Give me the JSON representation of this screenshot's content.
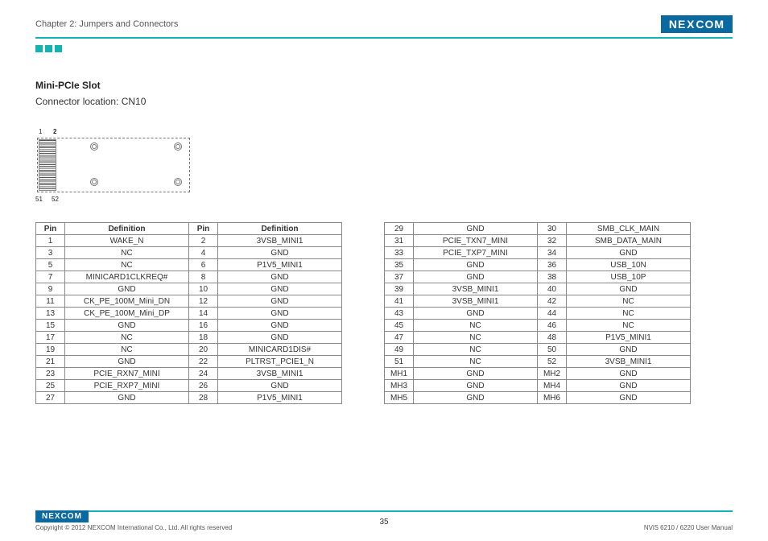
{
  "header": {
    "chapter": "Chapter 2: Jumpers and Connectors",
    "logo_text_left": "NE",
    "logo_text_x": "X",
    "logo_text_right": "COM"
  },
  "section": {
    "title": "Mini-PCIe Slot",
    "location": "Connector location: CN10"
  },
  "diagram": {
    "pin_labels": {
      "tl": "1",
      "tl2": "2",
      "bl": "51",
      "bl2": "52"
    }
  },
  "table_left": {
    "headers": [
      "Pin",
      "Definition",
      "Pin",
      "Definition"
    ],
    "rows": [
      [
        "1",
        "WAKE_N",
        "2",
        "3VSB_MINI1"
      ],
      [
        "3",
        "NC",
        "4",
        "GND"
      ],
      [
        "5",
        "NC",
        "6",
        "P1V5_MINI1"
      ],
      [
        "7",
        "MINICARD1CLKREQ#",
        "8",
        "GND"
      ],
      [
        "9",
        "GND",
        "10",
        "GND"
      ],
      [
        "11",
        "CK_PE_100M_Mini_DN",
        "12",
        "GND"
      ],
      [
        "13",
        "CK_PE_100M_Mini_DP",
        "14",
        "GND"
      ],
      [
        "15",
        "GND",
        "16",
        "GND"
      ],
      [
        "17",
        "NC",
        "18",
        "GND"
      ],
      [
        "19",
        "NC",
        "20",
        "MINICARD1DIS#"
      ],
      [
        "21",
        "GND",
        "22",
        "PLTRST_PCIE1_N"
      ],
      [
        "23",
        "PCIE_RXN7_MINI",
        "24",
        "3VSB_MINI1"
      ],
      [
        "25",
        "PCIE_RXP7_MINI",
        "26",
        "GND"
      ],
      [
        "27",
        "GND",
        "28",
        "P1V5_MINI1"
      ]
    ]
  },
  "table_right": {
    "rows": [
      [
        "29",
        "GND",
        "30",
        "SMB_CLK_MAIN"
      ],
      [
        "31",
        "PCIE_TXN7_MINI",
        "32",
        "SMB_DATA_MAIN"
      ],
      [
        "33",
        "PCIE_TXP7_MINI",
        "34",
        "GND"
      ],
      [
        "35",
        "GND",
        "36",
        "USB_10N"
      ],
      [
        "37",
        "GND",
        "38",
        "USB_10P"
      ],
      [
        "39",
        "3VSB_MINI1",
        "40",
        "GND"
      ],
      [
        "41",
        "3VSB_MINI1",
        "42",
        "NC"
      ],
      [
        "43",
        "GND",
        "44",
        "NC"
      ],
      [
        "45",
        "NC",
        "46",
        "NC"
      ],
      [
        "47",
        "NC",
        "48",
        "P1V5_MINI1"
      ],
      [
        "49",
        "NC",
        "50",
        "GND"
      ],
      [
        "51",
        "NC",
        "52",
        "3VSB_MINI1"
      ],
      [
        "MH1",
        "GND",
        "MH2",
        "GND"
      ],
      [
        "MH3",
        "GND",
        "MH4",
        "GND"
      ],
      [
        "MH5",
        "GND",
        "MH6",
        "GND"
      ]
    ]
  },
  "footer": {
    "copyright": "Copyright © 2012 NEXCOM International Co., Ltd. All rights reserved",
    "page": "35",
    "doc": "NViS 6210 / 6220 User Manual"
  },
  "colors": {
    "teal": "#12b3b3",
    "logo_bg": "#0a6aa0",
    "border": "#888888",
    "text": "#333333"
  }
}
